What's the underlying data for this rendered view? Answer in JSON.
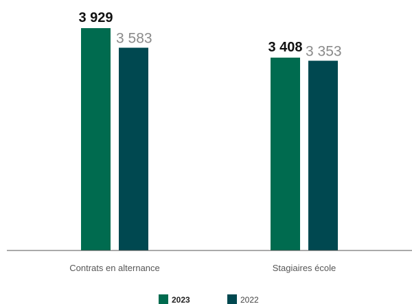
{
  "chart_data": {
    "type": "bar",
    "categories": [
      "Contrats en alternance",
      "Stagiaires école"
    ],
    "series": [
      {
        "name": "2023",
        "color": "#006b4f",
        "values": [
          3929,
          3408
        ],
        "labels": [
          "3 929",
          "3 408"
        ]
      },
      {
        "name": "2022",
        "color": "#004850",
        "values": [
          3583,
          3353
        ],
        "labels": [
          "3 583",
          "3 353"
        ]
      }
    ],
    "ylim": [
      0,
      3929
    ],
    "grid": false,
    "legend_position": "bottom-center",
    "title": "",
    "xlabel": "",
    "ylabel": ""
  }
}
